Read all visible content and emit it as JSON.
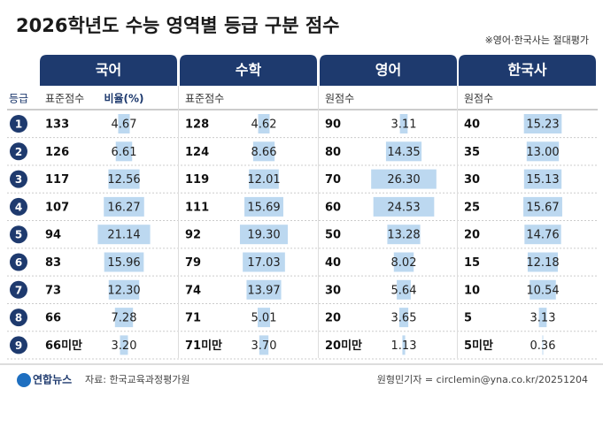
{
  "header": {
    "title": "2026학년도 수능 영역별 등급 구분 점수",
    "note": "※영어·한국사는 절대평가"
  },
  "table": {
    "grade_label": "등급",
    "grades": [
      1,
      2,
      3,
      4,
      5,
      6,
      7,
      8,
      9
    ],
    "sections": [
      {
        "name": "국어",
        "score_label": "표준점수",
        "ratio_label": "비율(%)",
        "scores": [
          133,
          126,
          117,
          107,
          94,
          83,
          73,
          66,
          "66미만"
        ],
        "ratios": [
          4.67,
          6.61,
          12.56,
          16.27,
          21.14,
          15.96,
          12.3,
          7.28,
          3.2
        ],
        "ratio_labels": [
          "4.67",
          "6.61",
          "12.56",
          "16.27",
          "21.14",
          "15.96",
          "12.30",
          "7.28",
          "3.20"
        ]
      },
      {
        "name": "수학",
        "score_label": "표준점수",
        "scores": [
          128,
          124,
          119,
          111,
          92,
          79,
          74,
          71,
          "71미만"
        ],
        "ratios": [
          4.62,
          8.66,
          12.01,
          15.69,
          19.3,
          17.03,
          13.97,
          5.01,
          3.7
        ],
        "ratio_labels": [
          "4.62",
          "8.66",
          "12.01",
          "15.69",
          "19.30",
          "17.03",
          "13.97",
          "5.01",
          "3.70"
        ]
      },
      {
        "name": "영어",
        "score_label": "원점수",
        "scores": [
          90,
          80,
          70,
          60,
          50,
          40,
          30,
          20,
          "20미만"
        ],
        "ratios": [
          3.11,
          14.35,
          26.3,
          24.53,
          13.28,
          8.02,
          5.64,
          3.65,
          1.13
        ],
        "ratio_labels": [
          "3.11",
          "14.35",
          "26.30",
          "24.53",
          "13.28",
          "8.02",
          "5.64",
          "3.65",
          "1.13"
        ]
      },
      {
        "name": "한국사",
        "score_label": "원점수",
        "scores": [
          40,
          35,
          30,
          25,
          20,
          15,
          10,
          5,
          "5미만"
        ],
        "ratios": [
          15.23,
          13.0,
          15.13,
          15.67,
          14.76,
          12.18,
          10.54,
          3.13,
          0.36
        ],
        "ratio_labels": [
          "15.23",
          "13.00",
          "15.13",
          "15.67",
          "14.76",
          "12.18",
          "10.54",
          "3.13",
          "0.36"
        ]
      }
    ]
  },
  "footer": {
    "logo": "연합뉴스",
    "source": "자료: 한국교육과정평가원",
    "credit": "원형민기자 = circlemin@yna.co.kr/20251204"
  }
}
